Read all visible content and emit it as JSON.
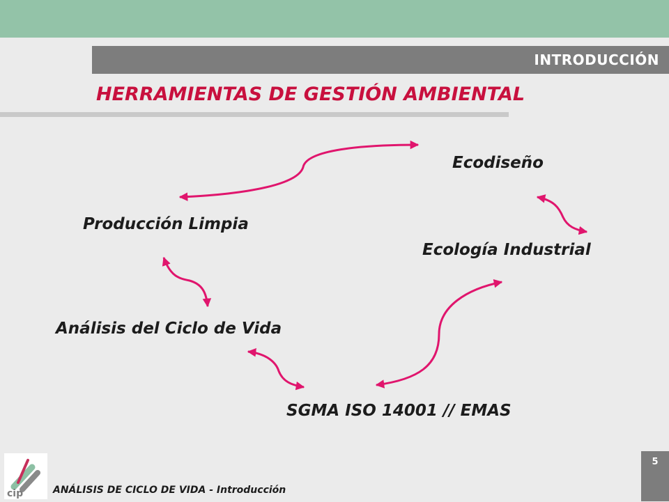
{
  "header": {
    "section_label": "INTRODUCCIÓN",
    "title": "HERRAMIENTAS DE GESTIÓN AMBIENTAL"
  },
  "diagram": {
    "nodes": {
      "ecodiseno": "Ecodiseño",
      "produccion_limpia": "Producción Limpia",
      "ecologia_industrial": "Ecología Industrial",
      "analisis_ciclo_vida": "Análisis del Ciclo de Vida",
      "sgma": "SGMA ISO 14001 // EMAS"
    },
    "connections": [
      {
        "from": "ecodiseno",
        "to": "produccion_limpia",
        "style": "double-headed"
      },
      {
        "from": "ecodiseno",
        "to": "ecologia_industrial",
        "style": "double-headed"
      },
      {
        "from": "produccion_limpia",
        "to": "analisis_ciclo_vida",
        "style": "double-headed"
      },
      {
        "from": "analisis_ciclo_vida",
        "to": "sgma",
        "style": "double-headed"
      },
      {
        "from": "sgma",
        "to": "ecologia_industrial",
        "style": "double-headed"
      }
    ],
    "arrow_color": "#e0156d"
  },
  "footer": {
    "course_label": "ANÁLISIS DE CICLO DE VIDA - Introducción",
    "page_number": "5",
    "logo_icon": "cip-logo-icon"
  },
  "colors": {
    "top_band": "#93c3a8",
    "section_bar": "#7d7d7d",
    "title": "#c8103e",
    "background": "#ebebeb"
  }
}
